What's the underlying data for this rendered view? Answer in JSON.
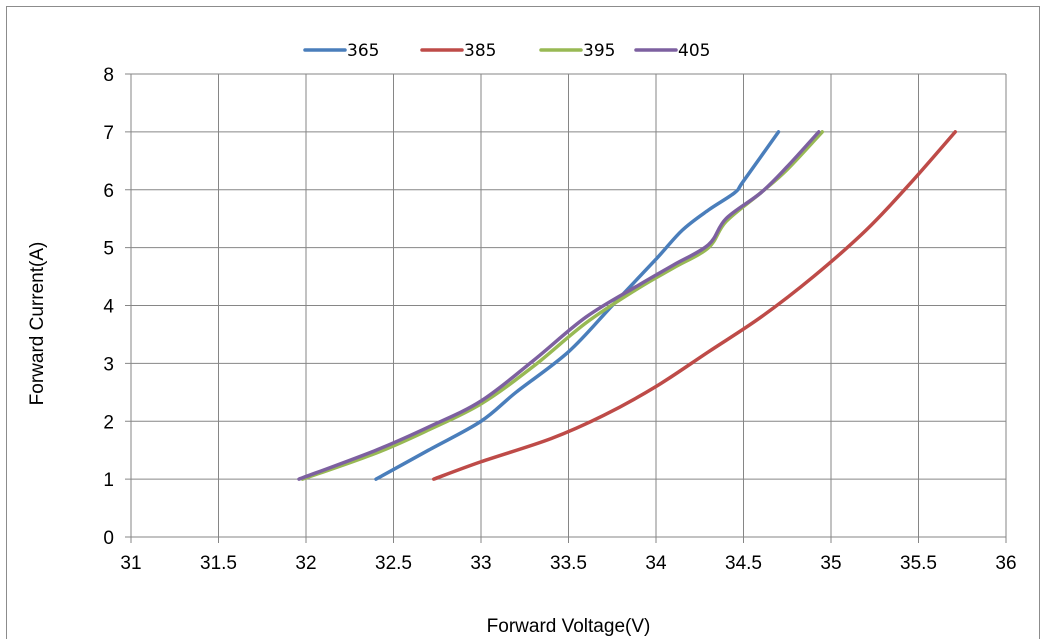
{
  "chart_data": {
    "type": "line",
    "title": "",
    "xlabel": "Forward Voltage(V)",
    "ylabel": "Forward Current(A)",
    "xlim": [
      31,
      36
    ],
    "ylim": [
      0,
      8
    ],
    "x_ticks": [
      "31",
      "31.5",
      "32",
      "32.5",
      "33",
      "33.5",
      "34",
      "34.5",
      "35",
      "35.5",
      "36"
    ],
    "y_ticks": [
      "0",
      "1",
      "2",
      "3",
      "4",
      "5",
      "6",
      "7",
      "8"
    ],
    "grid": true,
    "legend_position": "top",
    "series": [
      {
        "name": "365",
        "color": "#4a7ebb",
        "x": [
          32.4,
          32.7,
          33.0,
          33.2,
          33.5,
          33.75,
          34.0,
          34.15,
          34.3,
          34.45,
          34.5,
          34.7
        ],
        "y": [
          1,
          1.5,
          2,
          2.5,
          3.2,
          4.0,
          4.8,
          5.3,
          5.65,
          5.95,
          6.15,
          7
        ]
      },
      {
        "name": "385",
        "color": "#be4b48",
        "x": [
          32.73,
          33.0,
          33.4,
          33.7,
          34.0,
          34.3,
          34.6,
          34.9,
          35.2,
          35.45,
          35.71
        ],
        "y": [
          1,
          1.3,
          1.7,
          2.1,
          2.6,
          3.2,
          3.8,
          4.5,
          5.3,
          6.1,
          7
        ]
      },
      {
        "name": "395",
        "color": "#98b954",
        "x": [
          31.98,
          32.4,
          32.7,
          33.0,
          33.3,
          33.6,
          33.9,
          34.1,
          34.3,
          34.4,
          34.6,
          34.75,
          34.95
        ],
        "y": [
          1,
          1.45,
          1.85,
          2.3,
          2.95,
          3.7,
          4.3,
          4.65,
          5.0,
          5.45,
          5.95,
          6.35,
          7
        ]
      },
      {
        "name": "405",
        "color": "#7d60a0",
        "x": [
          31.96,
          32.4,
          32.7,
          33.0,
          33.3,
          33.6,
          33.9,
          34.1,
          34.3,
          34.4,
          34.6,
          34.75,
          34.93
        ],
        "y": [
          1,
          1.5,
          1.9,
          2.35,
          3.05,
          3.8,
          4.35,
          4.7,
          5.05,
          5.5,
          5.95,
          6.4,
          7
        ]
      }
    ]
  }
}
